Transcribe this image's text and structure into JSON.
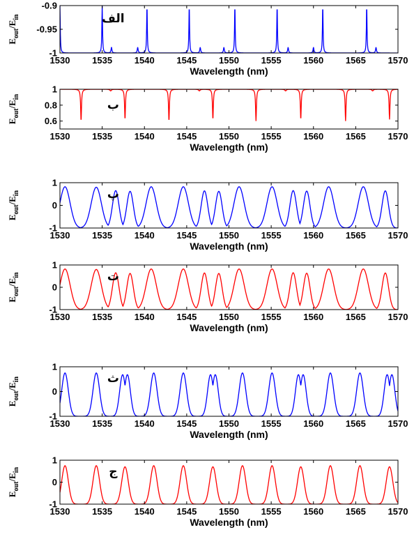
{
  "figure": {
    "ylabel_main": "E",
    "ylabel_sub1": "out",
    "ylabel_slash": "/E",
    "ylabel_sub2": "in"
  },
  "chart_data": [
    {
      "type": "line",
      "label": "الف",
      "color": "#0000ff",
      "shape": "dip",
      "base": -1,
      "peak_top": -0.9,
      "resonances": [
        1530,
        1535,
        1540.3,
        1545.3,
        1550.7,
        1555.7,
        1561.1,
        1566.3
      ],
      "weak_resonances": [
        1536.1,
        1539.2,
        1546.6,
        1549.4,
        1557,
        1560,
        1567.4
      ],
      "xlabel": "Wavelength (nm)",
      "xlim": [
        1530,
        1570
      ],
      "ylim": [
        -1,
        -0.9
      ],
      "xticks": [
        "1530",
        "1535",
        "1540",
        "1545",
        "1550",
        "1555",
        "1560",
        "1565",
        "1570"
      ],
      "yticks": [
        "-0.9",
        "-0.95",
        "-1"
      ],
      "ytick_values": [
        -0.9,
        -0.95,
        -1
      ]
    },
    {
      "type": "line",
      "label": "ب",
      "color": "#ff0000",
      "shape": "notch",
      "base": 1,
      "notches": [
        {
          "x": 1532.5,
          "y": 0.6
        },
        {
          "x": 1537.7,
          "y": 0.62
        },
        {
          "x": 1542.9,
          "y": 0.6
        },
        {
          "x": 1548.1,
          "y": 0.62
        },
        {
          "x": 1553.2,
          "y": 0.6
        },
        {
          "x": 1558.5,
          "y": 0.62
        },
        {
          "x": 1563.8,
          "y": 0.6
        },
        {
          "x": 1569,
          "y": 0.62
        }
      ],
      "xlabel": "Wavelength (nm)",
      "xlim": [
        1530,
        1570
      ],
      "ylim": [
        0.5,
        1
      ],
      "xticks": [
        "1530",
        "1535",
        "1540",
        "1545",
        "1550",
        "1555",
        "1560",
        "1565",
        "1570"
      ],
      "yticks": [
        "1",
        "0.8",
        "0.6"
      ],
      "ytick_values": [
        1,
        0.8,
        0.6
      ]
    },
    {
      "type": "line",
      "label": "پ",
      "color": "#0000ff",
      "shape": "peaks",
      "peaks": [
        1530.6,
        1534.3,
        1536.6,
        1538.3,
        1540.8,
        1544.6,
        1547.1,
        1548.8,
        1551.2,
        1555.1,
        1557.6,
        1559.2,
        1561.8,
        1565.9,
        1568.5
      ],
      "peak_heights": [
        0.82,
        0.8,
        0.65,
        0.62,
        0.82,
        0.82,
        0.64,
        0.62,
        0.82,
        0.82,
        0.65,
        0.63,
        0.82,
        0.82,
        0.64
      ],
      "trough": -1,
      "xlabel": "Wavelength (nm)",
      "xlim": [
        1530,
        1570
      ],
      "ylim": [
        -1,
        1
      ],
      "xticks": [
        "1530",
        "1535",
        "1540",
        "1545",
        "1550",
        "1555",
        "1560",
        "1565",
        "1570"
      ],
      "yticks": [
        "1",
        "0",
        "-1"
      ],
      "ytick_values": [
        1,
        0,
        -1
      ]
    },
    {
      "type": "line",
      "label": "ت",
      "color": "#ff0000",
      "shape": "peaks",
      "peaks": [
        1530.6,
        1534.3,
        1536.6,
        1538.3,
        1540.8,
        1544.6,
        1547.1,
        1548.8,
        1551.2,
        1555.1,
        1557.6,
        1559.2,
        1561.8,
        1565.9,
        1568.5
      ],
      "peak_heights": [
        0.82,
        0.8,
        0.65,
        0.62,
        0.82,
        0.82,
        0.64,
        0.62,
        0.82,
        0.82,
        0.65,
        0.63,
        0.82,
        0.82,
        0.64
      ],
      "trough": -1,
      "xlabel": "Wavelength (nm)",
      "xlim": [
        1530,
        1570
      ],
      "ylim": [
        -1,
        1
      ],
      "xticks": [
        "1530",
        "1535",
        "1540",
        "1545",
        "1550",
        "1555",
        "1560",
        "1565",
        "1570"
      ],
      "yticks": [
        "1",
        "0",
        "-1"
      ],
      "ytick_values": [
        1,
        0,
        -1
      ]
    },
    {
      "type": "line",
      "label": "ث",
      "color": "#0000ff",
      "shape": "peaks",
      "peaks": [
        1530.6,
        1534.3,
        1537.7,
        1541.1,
        1544.6,
        1548.1,
        1551.6,
        1555.1,
        1558.5,
        1562,
        1565.5,
        1569
      ],
      "peak_heights": [
        0.75,
        0.75,
        0.68,
        0.75,
        0.75,
        0.68,
        0.75,
        0.75,
        0.68,
        0.75,
        0.75,
        0.68
      ],
      "split": [
        false,
        false,
        true,
        false,
        false,
        true,
        false,
        false,
        true,
        false,
        false,
        true
      ],
      "trough": -1,
      "xlabel": "Wavelength (nm)",
      "xlim": [
        1530,
        1570
      ],
      "ylim": [
        -1,
        1
      ],
      "xticks": [
        "1530",
        "1535",
        "1540",
        "1545",
        "1550",
        "1555",
        "1560",
        "1565",
        "1570"
      ],
      "yticks": [
        "1",
        "0",
        "-1"
      ],
      "ytick_values": [
        1,
        0,
        -1
      ]
    },
    {
      "type": "line",
      "label": "ج",
      "color": "#ff0000",
      "shape": "peaks",
      "peaks": [
        1530.6,
        1534.3,
        1537.7,
        1541.1,
        1544.6,
        1548.1,
        1551.6,
        1555.1,
        1558.5,
        1562,
        1565.5,
        1569
      ],
      "peak_heights": [
        0.75,
        0.75,
        0.7,
        0.75,
        0.75,
        0.7,
        0.75,
        0.75,
        0.7,
        0.75,
        0.75,
        0.7
      ],
      "split": [
        false,
        false,
        false,
        false,
        false,
        false,
        false,
        false,
        false,
        false,
        false,
        false
      ],
      "trough": -1,
      "xlabel": "Wavelength (nm)",
      "xlim": [
        1530,
        1570
      ],
      "ylim": [
        -1,
        1
      ],
      "xticks": [
        "1530",
        "1535",
        "1540",
        "1545",
        "1550",
        "1555",
        "1560",
        "1565",
        "1570"
      ],
      "yticks": [
        "1",
        "0",
        "-1"
      ],
      "ytick_values": [
        1,
        0,
        -1
      ]
    }
  ]
}
